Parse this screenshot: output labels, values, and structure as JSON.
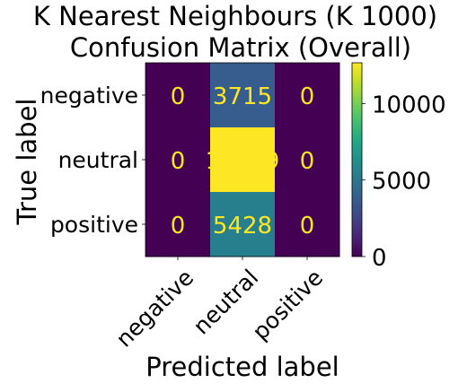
{
  "chart_data": {
    "type": "heatmap",
    "title_lines": [
      "K Nearest Neighbours (K 1000)",
      "Confusion Matrix (Overall)"
    ],
    "xlabel": "Predicted label",
    "ylabel": "True label",
    "x_categories": [
      "negative",
      "neutral",
      "positive"
    ],
    "y_categories": [
      "negative",
      "neutral",
      "positive"
    ],
    "values": [
      [
        0,
        3715,
        0
      ],
      [
        0,
        12659,
        0
      ],
      [
        0,
        5428,
        0
      ]
    ],
    "colormap": "viridis",
    "colorbar": {
      "min": 0,
      "max": 12659,
      "ticks": [
        0,
        5000,
        10000
      ]
    },
    "annotation_color": "#fde725"
  }
}
